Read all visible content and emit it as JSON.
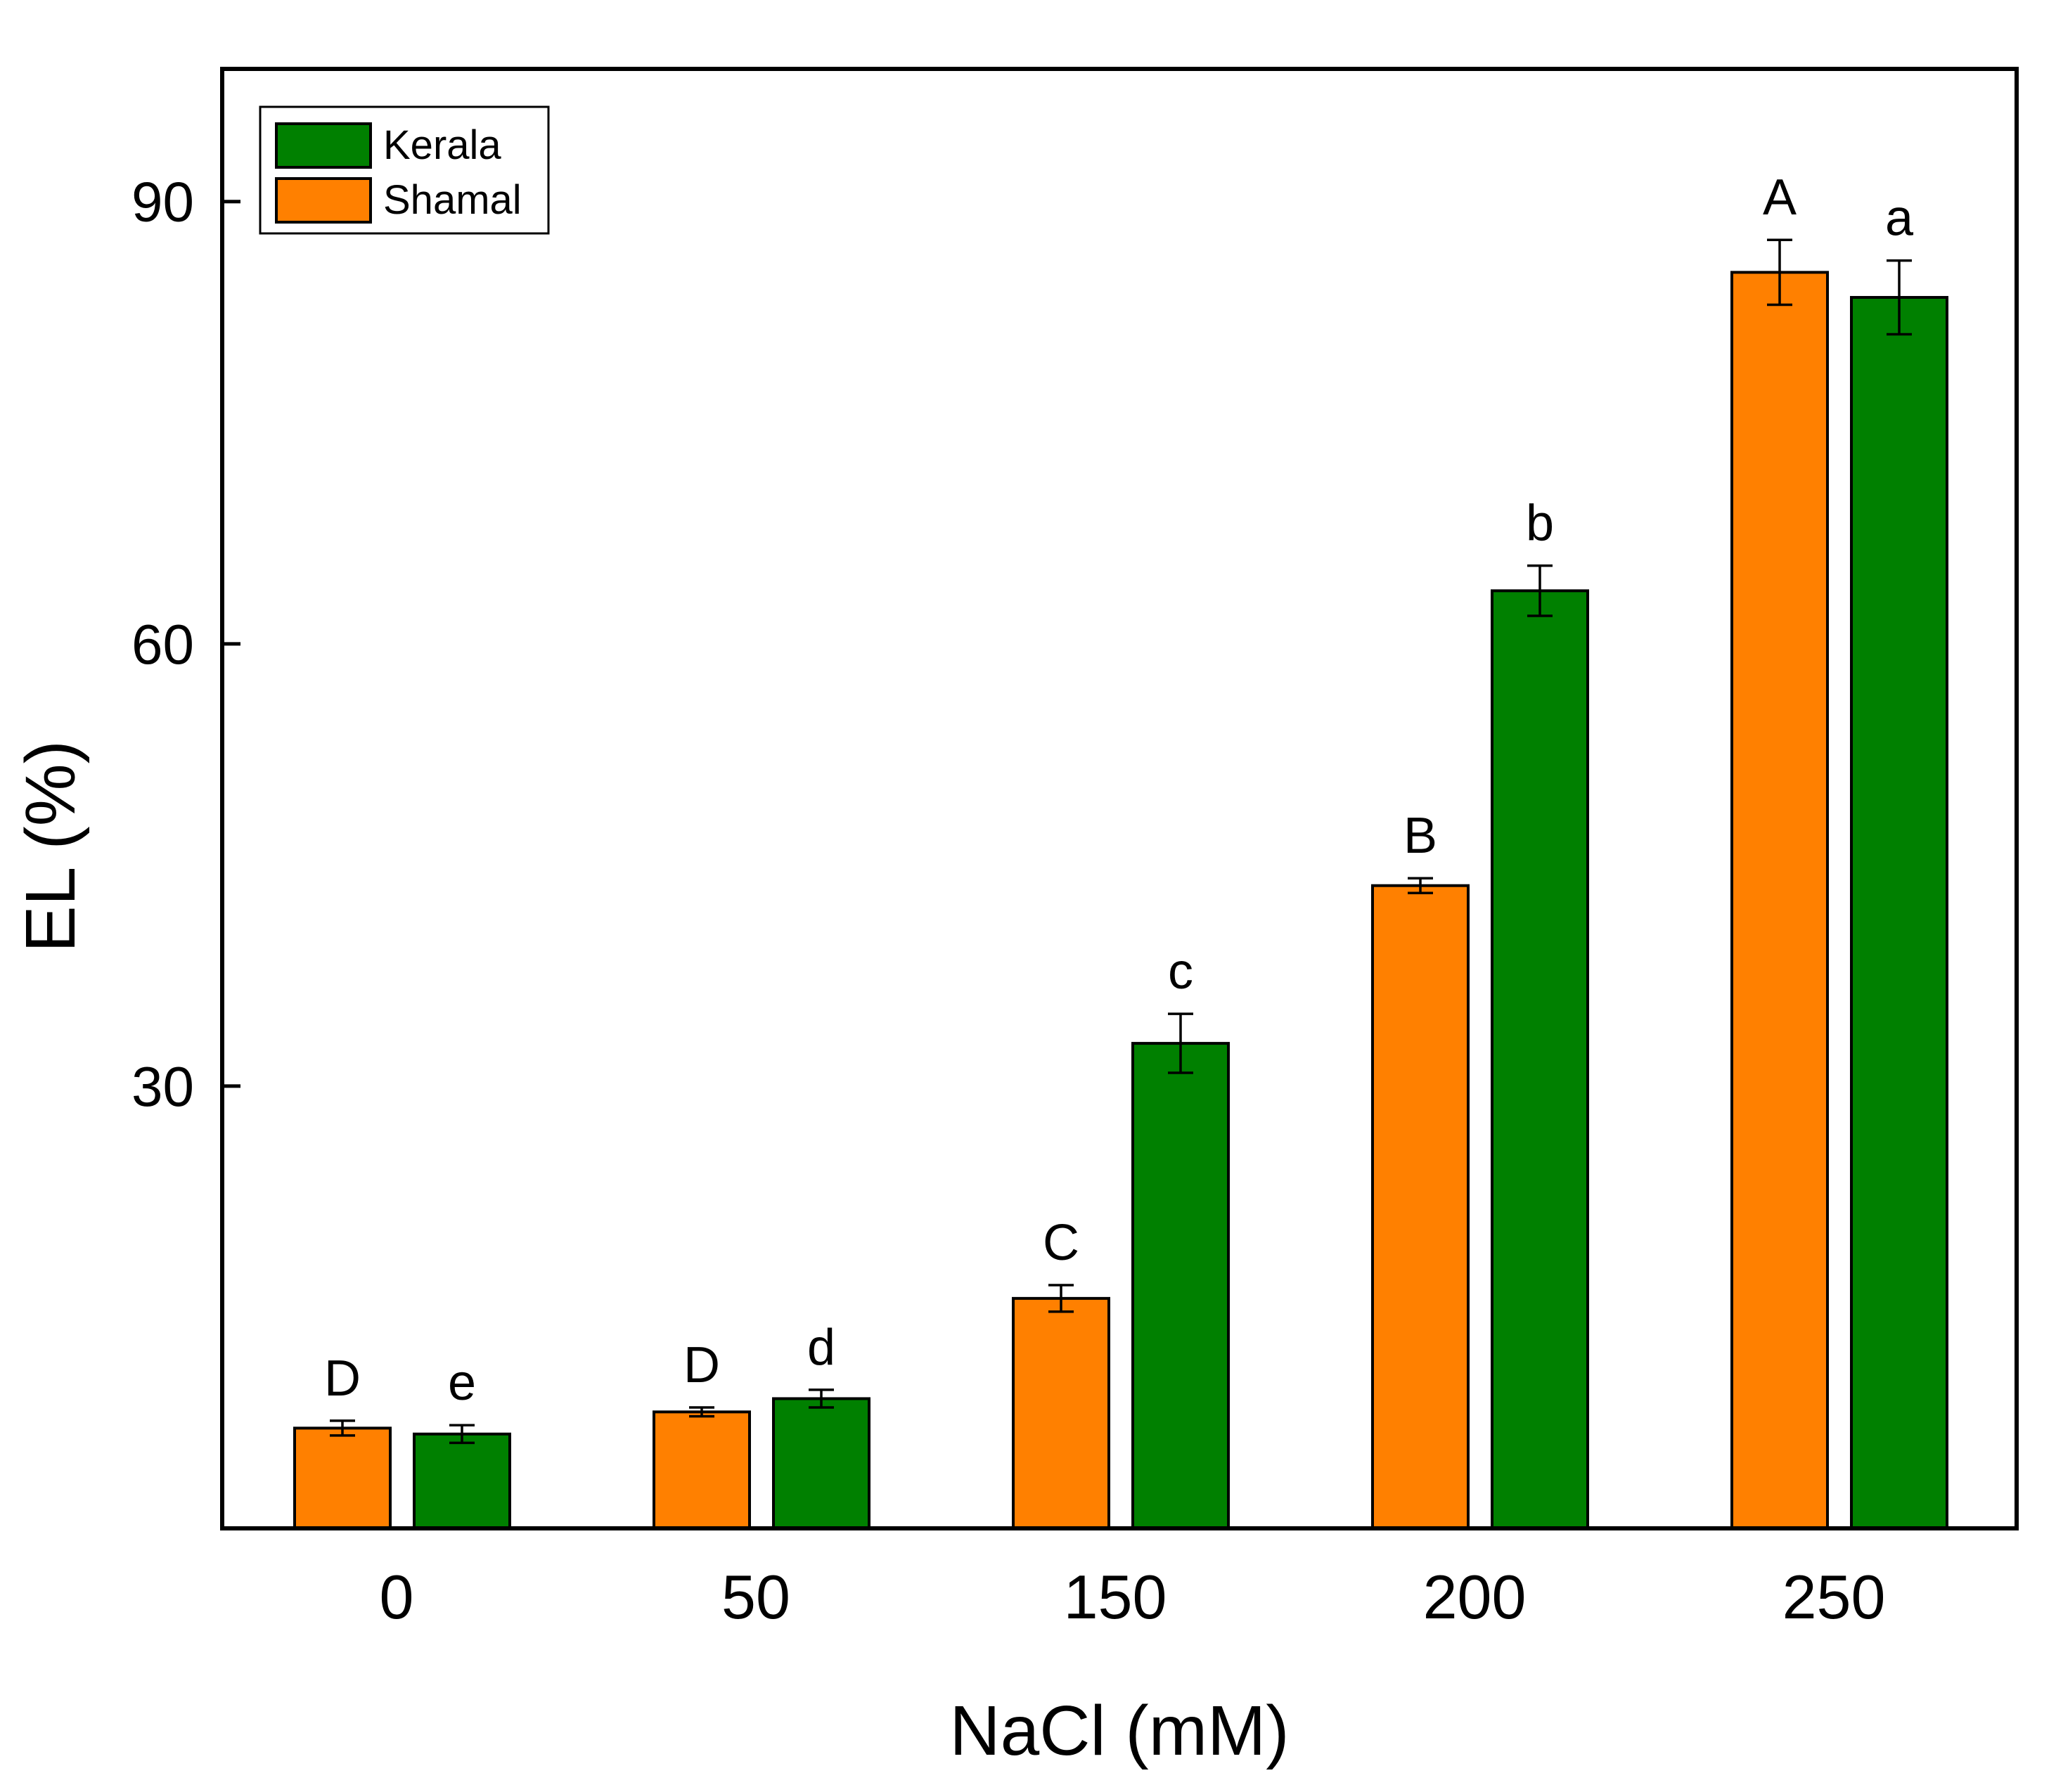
{
  "chart_data": {
    "type": "bar",
    "title": "",
    "xlabel": "NaCl (mM)",
    "ylabel": "EL (%)",
    "categories": [
      "0",
      "50",
      "150",
      "200",
      "250"
    ],
    "ylim": [
      0,
      99
    ],
    "yticks": [
      30,
      60,
      90
    ],
    "grid": false,
    "legend_position": "top-left",
    "series": [
      {
        "name": "Shamal",
        "color": "#FF8000",
        "values": [
          6.8,
          7.9,
          15.6,
          43.6,
          85.2
        ],
        "errors": [
          0.5,
          0.3,
          0.9,
          0.5,
          2.2
        ],
        "significance": [
          "D",
          "D",
          "C",
          "B",
          "A"
        ]
      },
      {
        "name": "Kerala",
        "color": "#008000",
        "values": [
          6.4,
          8.8,
          32.9,
          63.6,
          83.5
        ],
        "errors": [
          0.6,
          0.6,
          2.0,
          1.7,
          2.5
        ],
        "significance": [
          "e",
          "d",
          "c",
          "b",
          "a"
        ]
      }
    ]
  }
}
